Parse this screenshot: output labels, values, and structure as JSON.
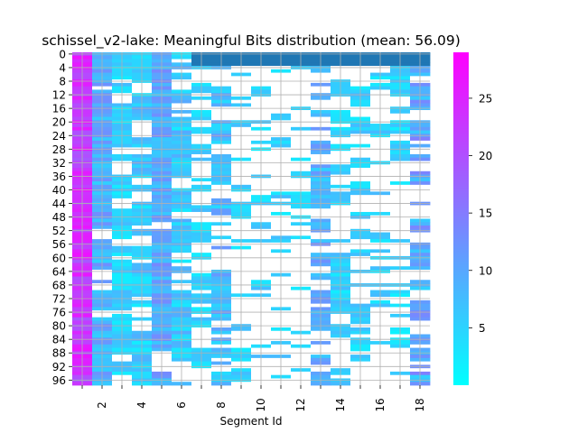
{
  "chart_data": {
    "type": "heatmap",
    "title": "schissel_v2-lake: Meaningful Bits distribution (mean: 56.09)",
    "xlabel": "Segment Id",
    "ylabel": "",
    "x_tick_labels": [
      "2",
      "4",
      "6",
      "8",
      "10",
      "12",
      "14",
      "16",
      "18"
    ],
    "x_tick_values": [
      2,
      4,
      6,
      8,
      10,
      12,
      14,
      16,
      18
    ],
    "y_tick_labels": [
      "0",
      "4",
      "8",
      "12",
      "16",
      "20",
      "24",
      "28",
      "32",
      "36",
      "40",
      "44",
      "48",
      "52",
      "56",
      "60",
      "64",
      "68",
      "72",
      "76",
      "80",
      "84",
      "88",
      "92",
      "96"
    ],
    "y_tick_values": [
      0,
      4,
      8,
      12,
      16,
      20,
      24,
      28,
      32,
      36,
      40,
      44,
      48,
      52,
      56,
      60,
      64,
      68,
      72,
      76,
      80,
      84,
      88,
      92,
      96
    ],
    "columns": 18,
    "rows": 98,
    "colorbar": {
      "min": 0,
      "max": 29,
      "ticks": [
        5,
        10,
        15,
        20,
        25
      ],
      "colormap": [
        "#00ffff",
        "#ff00ff"
      ]
    },
    "blank_color": "#ffffff",
    "special_band": {
      "rows": [
        0,
        3
      ],
      "columns": [
        7,
        18
      ],
      "color": "#1f77b4"
    },
    "column_profiles": [
      {
        "segment": 1,
        "base": 23,
        "spread": 4,
        "fill": 1.0
      },
      {
        "segment": 2,
        "base": 9,
        "spread": 4,
        "fill": 0.95
      },
      {
        "segment": 3,
        "base": 5,
        "spread": 3,
        "fill": 0.85
      },
      {
        "segment": 4,
        "base": 6,
        "spread": 4,
        "fill": 0.9
      },
      {
        "segment": 5,
        "base": 10,
        "spread": 4,
        "fill": 0.97
      },
      {
        "segment": 6,
        "base": 6,
        "spread": 4,
        "fill": 0.85
      },
      {
        "segment": 7,
        "base": 5,
        "spread": 3,
        "fill": 0.65
      },
      {
        "segment": 8,
        "base": 8,
        "spread": 4,
        "fill": 0.8
      },
      {
        "segment": 9,
        "base": 5,
        "spread": 3,
        "fill": 0.55
      },
      {
        "segment": 10,
        "base": 5,
        "spread": 3,
        "fill": 0.3
      },
      {
        "segment": 11,
        "base": 5,
        "spread": 3,
        "fill": 0.3
      },
      {
        "segment": 12,
        "base": 4,
        "spread": 2,
        "fill": 0.35
      },
      {
        "segment": 13,
        "base": 9,
        "spread": 4,
        "fill": 0.8
      },
      {
        "segment": 14,
        "base": 5,
        "spread": 3,
        "fill": 0.7
      },
      {
        "segment": 15,
        "base": 5,
        "spread": 3,
        "fill": 0.65
      },
      {
        "segment": 16,
        "base": 5,
        "spread": 3,
        "fill": 0.45
      },
      {
        "segment": 17,
        "base": 4,
        "spread": 3,
        "fill": 0.6
      },
      {
        "segment": 18,
        "base": 10,
        "spread": 5,
        "fill": 0.85
      }
    ]
  }
}
